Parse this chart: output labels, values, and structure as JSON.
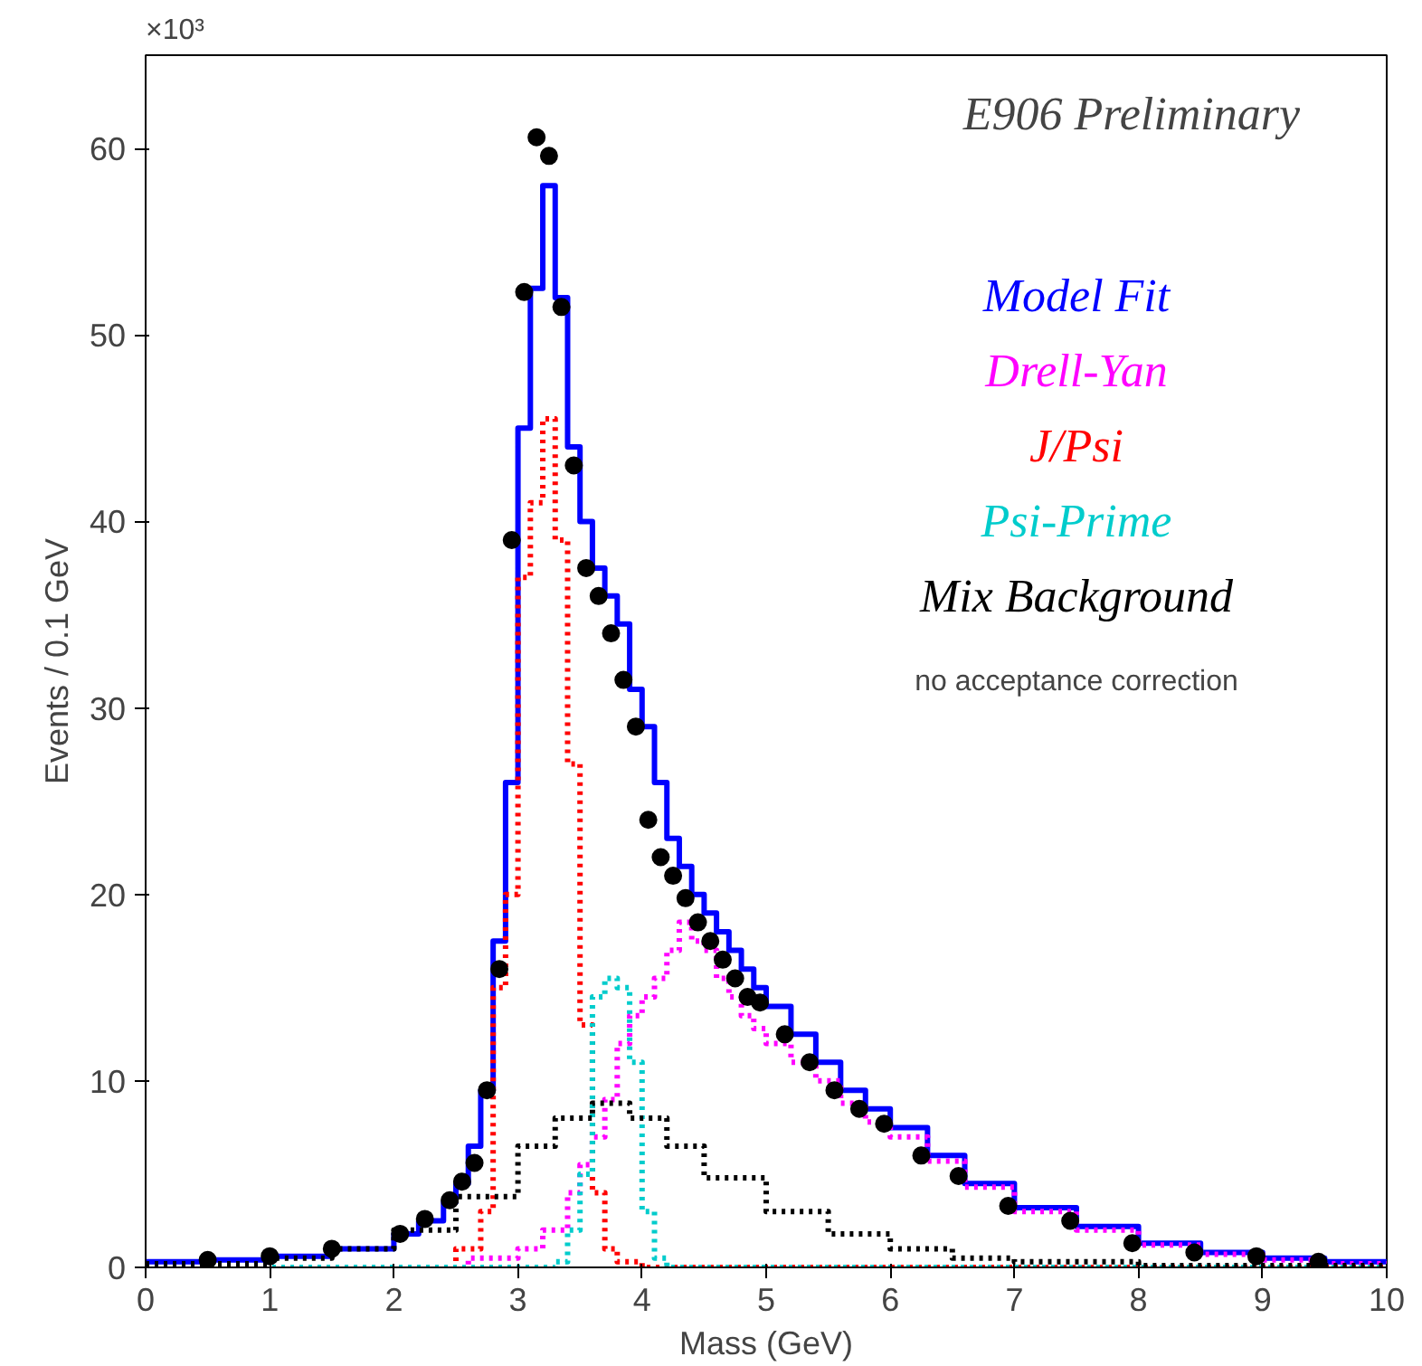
{
  "chart_data": {
    "type": "step",
    "title": "E906 Preliminary",
    "xlabel": "Mass (GeV)",
    "ylabel": "Events / 0.1 GeV",
    "annotations": [
      "no acceptance correction",
      "×10³"
    ],
    "xlim": [
      0,
      10
    ],
    "ylim": [
      0,
      65
    ],
    "xticks": [
      0,
      1,
      2,
      3,
      4,
      5,
      6,
      7,
      8,
      9,
      10
    ],
    "yticks": [
      0,
      10,
      20,
      30,
      40,
      50,
      60
    ],
    "grid": false,
    "series": [
      {
        "name": "Model Fit",
        "color": "#0000ff",
        "line_style": "solid",
        "x": [
          0,
          0.5,
          1.0,
          1.5,
          2.0,
          2.2,
          2.4,
          2.5,
          2.6,
          2.7,
          2.8,
          2.9,
          3.0,
          3.1,
          3.2,
          3.3,
          3.4,
          3.5,
          3.6,
          3.7,
          3.8,
          3.9,
          4.0,
          4.1,
          4.2,
          4.3,
          4.4,
          4.5,
          4.6,
          4.7,
          4.8,
          4.9,
          5.0,
          5.2,
          5.4,
          5.6,
          5.8,
          6.0,
          6.3,
          6.6,
          7.0,
          7.5,
          8.0,
          8.5,
          9.0,
          9.5,
          10
        ],
        "values": [
          0.3,
          0.4,
          0.6,
          1.0,
          1.8,
          2.5,
          3.5,
          4.5,
          6.5,
          9.5,
          17.5,
          26,
          45,
          52.5,
          58,
          52,
          44,
          40,
          37.5,
          36,
          34.5,
          31,
          29,
          26,
          23,
          21.5,
          20,
          19,
          18,
          17,
          16,
          15,
          14,
          12.5,
          11,
          9.5,
          8.5,
          7.5,
          6,
          4.5,
          3.2,
          2.2,
          1.3,
          0.8,
          0.5,
          0.3,
          0.3
        ]
      },
      {
        "name": "Drell-Yan",
        "color": "#ff00ff",
        "line_style": "dotted",
        "x": [
          0,
          2.6,
          3.0,
          3.2,
          3.4,
          3.5,
          3.6,
          3.7,
          3.8,
          3.9,
          4.0,
          4.1,
          4.2,
          4.3,
          4.4,
          4.5,
          4.6,
          4.7,
          4.8,
          4.9,
          5.0,
          5.2,
          5.4,
          5.6,
          5.8,
          6.0,
          6.3,
          6.6,
          7.0,
          7.5,
          8.0,
          8.5,
          9.0,
          9.5,
          10
        ],
        "values": [
          0,
          0.5,
          1,
          2,
          4,
          5.5,
          7,
          9,
          12,
          13.5,
          14.5,
          15.5,
          17,
          18.5,
          17.5,
          17,
          15.5,
          14.5,
          13.5,
          12.8,
          12,
          11,
          10,
          8.8,
          7.8,
          7,
          5.7,
          4.3,
          3,
          2,
          1.2,
          0.7,
          0.4,
          0.2,
          0.2
        ]
      },
      {
        "name": "J/Psi",
        "color": "#ff0000",
        "line_style": "dotted",
        "x": [
          0,
          2.5,
          2.7,
          2.8,
          2.9,
          3.0,
          3.1,
          3.2,
          3.3,
          3.4,
          3.5,
          3.6,
          3.7,
          3.8,
          4.0,
          10
        ],
        "values": [
          0,
          1,
          3,
          15,
          20,
          37,
          41,
          45.5,
          39,
          27,
          13,
          4,
          1,
          0.3,
          0,
          0
        ]
      },
      {
        "name": "Psi-Prime",
        "color": "#00cccc",
        "line_style": "dotted",
        "x": [
          0,
          3.3,
          3.4,
          3.5,
          3.6,
          3.7,
          3.8,
          3.9,
          4.0,
          4.1,
          4.2,
          10
        ],
        "values": [
          0,
          0.3,
          2,
          5,
          14.5,
          15.5,
          15,
          11,
          3,
          0.5,
          0,
          0
        ]
      },
      {
        "name": "Mix Background",
        "color": "#000000",
        "line_style": "dotted",
        "x": [
          0,
          1,
          1.5,
          2,
          2.5,
          3.0,
          3.3,
          3.6,
          3.9,
          4.2,
          4.5,
          5.0,
          5.5,
          6.0,
          6.5,
          7.0,
          8.0,
          10
        ],
        "values": [
          0.2,
          0.5,
          1,
          2,
          3.8,
          6.5,
          8,
          8.8,
          8,
          6.5,
          4.8,
          3,
          1.8,
          1,
          0.5,
          0.3,
          0.1,
          0
        ]
      },
      {
        "color": "#000000",
        "type": "scatter",
        "marker": "circle",
        "x": [
          0.5,
          1.0,
          1.5,
          2.05,
          2.25,
          2.45,
          2.55,
          2.65,
          2.75,
          2.85,
          2.95,
          3.05,
          3.15,
          3.25,
          3.35,
          3.45,
          3.55,
          3.65,
          3.75,
          3.85,
          3.95,
          4.05,
          4.15,
          4.25,
          4.35,
          4.45,
          4.55,
          4.65,
          4.75,
          4.85,
          4.95,
          5.15,
          5.35,
          5.55,
          5.75,
          5.95,
          6.25,
          6.55,
          6.95,
          7.45,
          7.95,
          8.45,
          8.95,
          9.45
        ],
        "values": [
          0.4,
          0.6,
          1.0,
          1.8,
          2.6,
          3.6,
          4.6,
          5.6,
          9.5,
          16,
          39,
          52.3,
          60.6,
          59.6,
          51.5,
          43,
          37.5,
          36,
          34,
          31.5,
          29,
          24,
          22,
          21,
          19.8,
          18.5,
          17.5,
          16.5,
          15.5,
          14.5,
          14.2,
          12.5,
          11,
          9.5,
          8.5,
          7.7,
          6,
          4.9,
          3.3,
          2.5,
          1.3,
          0.8,
          0.6,
          0.3
        ]
      }
    ]
  }
}
